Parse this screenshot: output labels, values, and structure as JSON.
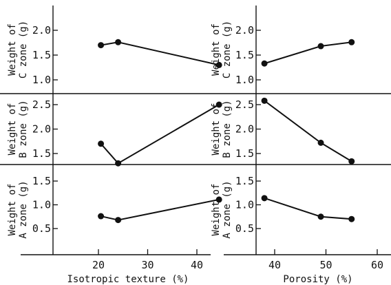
{
  "colors": {
    "ink": "#111111",
    "background": "#ffffff"
  },
  "chart_data": [
    {
      "type": "line",
      "panel": "left-top",
      "ylabel": [
        "Weight of",
        "C zone (g)"
      ],
      "x": [
        20.5,
        24,
        44.5
      ],
      "values": [
        1.7,
        1.76,
        1.3
      ],
      "xlim": [
        15,
        65
      ],
      "ylim": [
        0.75,
        2.45
      ],
      "yticks": [
        "1.0",
        "1.5",
        "2.0"
      ]
    },
    {
      "type": "line",
      "panel": "left-middle",
      "ylabel": [
        "Weight of",
        "B zone (g)"
      ],
      "x": [
        20.5,
        24,
        44.5
      ],
      "values": [
        1.7,
        1.3,
        2.5
      ],
      "xlim": [
        15,
        65
      ],
      "ylim": [
        1.28,
        2.82
      ],
      "yticks": [
        "1.5",
        "2.0",
        "2.5"
      ]
    },
    {
      "type": "line",
      "panel": "left-bottom",
      "ylabel": [
        "Weight of",
        "A zone (g)"
      ],
      "x": [
        20.5,
        24,
        44.5
      ],
      "values": [
        0.76,
        0.68,
        1.11
      ],
      "xlim": [
        15,
        65
      ],
      "ylim": [
        0.05,
        1.7
      ],
      "yticks": [
        "0.5",
        "1.0",
        "1.5"
      ],
      "xticks": [
        "20",
        "30",
        "40"
      ],
      "xlabel": "Isotropic texture (%)"
    },
    {
      "type": "line",
      "panel": "right-top",
      "ylabel": [
        "Weight of",
        "C zone (g)"
      ],
      "x": [
        38,
        49,
        55
      ],
      "values": [
        1.33,
        1.68,
        1.76
      ],
      "xlim": [
        34,
        62
      ],
      "ylim": [
        0.75,
        2.45
      ],
      "yticks": [
        "1.0",
        "1.5",
        "2.0"
      ]
    },
    {
      "type": "line",
      "panel": "right-middle",
      "ylabel": [
        "Weight of",
        "B zone (g)"
      ],
      "x": [
        38,
        49,
        55
      ],
      "values": [
        2.58,
        1.72,
        1.34
      ],
      "xlim": [
        34,
        62
      ],
      "ylim": [
        1.28,
        2.82
      ],
      "yticks": [
        "1.5",
        "2.0",
        "2.5"
      ]
    },
    {
      "type": "line",
      "panel": "right-bottom",
      "ylabel": [
        "Weight of",
        "A zone (g)"
      ],
      "x": [
        38,
        49,
        55
      ],
      "values": [
        1.14,
        0.75,
        0.7
      ],
      "xlim": [
        34,
        62
      ],
      "ylim": [
        0.05,
        1.7
      ],
      "yticks": [
        "0.5",
        "1.0",
        "1.5"
      ],
      "xticks": [
        "40",
        "50",
        "60"
      ],
      "xlabel": "Porosity (%)"
    }
  ]
}
